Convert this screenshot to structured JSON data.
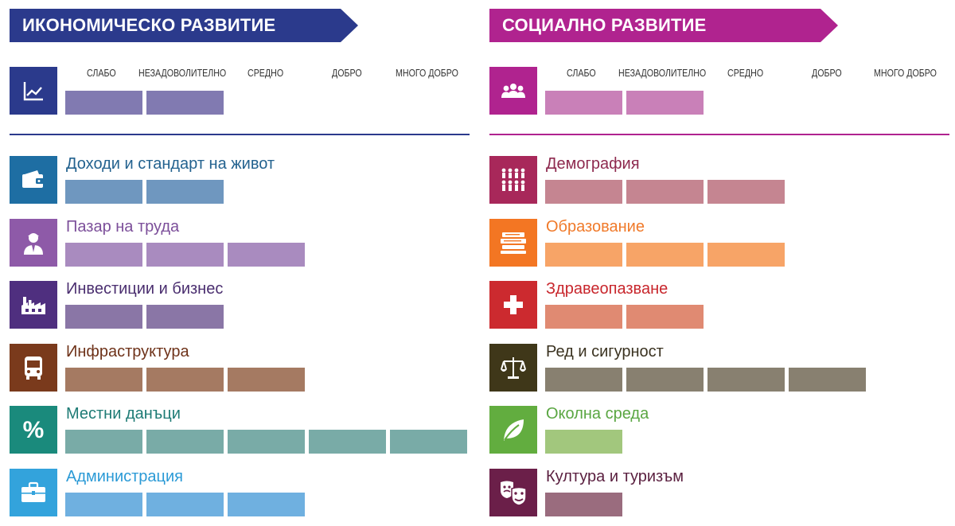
{
  "scale_labels": [
    "СЛАБО",
    "НЕЗАДОВОЛИТЕЛНО",
    "СРЕДНО",
    "ДОБРО",
    "МНОГО ДОБРО"
  ],
  "economic": {
    "title": "ИКОНОМИЧЕСКО РАЗВИТИЕ",
    "color": "#2b3a8c",
    "overall": {
      "icon": "line-chart-icon",
      "level": 2,
      "color": "#817ab1",
      "icon_bg": "#2b3a8c"
    },
    "items": [
      {
        "label": "Доходи и стандарт на живот",
        "icon": "wallet-icon",
        "level": 2,
        "color": "#6f97bf",
        "label_color": "#23628f",
        "icon_bg": "#1e6ea3"
      },
      {
        "label": "Пазар на труда",
        "icon": "worker-icon",
        "level": 3,
        "color": "#a98bbf",
        "label_color": "#7c4f9a",
        "icon_bg": "#8e5aa8"
      },
      {
        "label": "Инвестиции и бизнес",
        "icon": "factory-icon",
        "level": 2,
        "color": "#8a76a6",
        "label_color": "#4a2e6f",
        "icon_bg": "#4f2f7f"
      },
      {
        "label": "Инфраструктура",
        "icon": "bus-icon",
        "level": 3,
        "color": "#a57a62",
        "label_color": "#6e3219",
        "icon_bg": "#7a3a1c"
      },
      {
        "label": "Местни данъци",
        "icon": "percent-icon",
        "level": 5,
        "color": "#79aba7",
        "label_color": "#1e7b75",
        "icon_bg": "#1a8a7c"
      },
      {
        "label": "Администрация",
        "icon": "briefcase-icon",
        "level": 3,
        "color": "#6fb0e0",
        "label_color": "#2b9ad6",
        "icon_bg": "#33a3dc"
      }
    ]
  },
  "social": {
    "title": "СОЦИАЛНО РАЗВИТИЕ",
    "color": "#b0238f",
    "overall": {
      "icon": "people-icon",
      "level": 2,
      "color": "#c980b8",
      "icon_bg": "#b0238f"
    },
    "items": [
      {
        "label": "Демография",
        "icon": "population-icon",
        "level": 3,
        "color": "#c58591",
        "label_color": "#8e2a4f",
        "icon_bg": "#a8285a"
      },
      {
        "label": "Образование",
        "icon": "books-icon",
        "level": 3,
        "color": "#f7a467",
        "label_color": "#f07a2a",
        "icon_bg": "#f37623"
      },
      {
        "label": "Здравеопазване",
        "icon": "medical-cross-icon",
        "level": 2,
        "color": "#e08a72",
        "label_color": "#c8262c",
        "icon_bg": "#cc2a2f"
      },
      {
        "label": "Ред и сигурност",
        "icon": "scales-icon",
        "level": 4,
        "color": "#888070",
        "label_color": "#3a3220",
        "icon_bg": "#3f3719"
      },
      {
        "label": "Околна среда",
        "icon": "leaf-icon",
        "level": 1,
        "color": "#a2c77d",
        "label_color": "#5aa642",
        "icon_bg": "#62ad3f"
      },
      {
        "label": "Култура и туризъм",
        "icon": "theater-masks-icon",
        "level": 1,
        "color": "#9a6c7e",
        "label_color": "#5a1f3f",
        "icon_bg": "#6b1f49"
      }
    ]
  }
}
